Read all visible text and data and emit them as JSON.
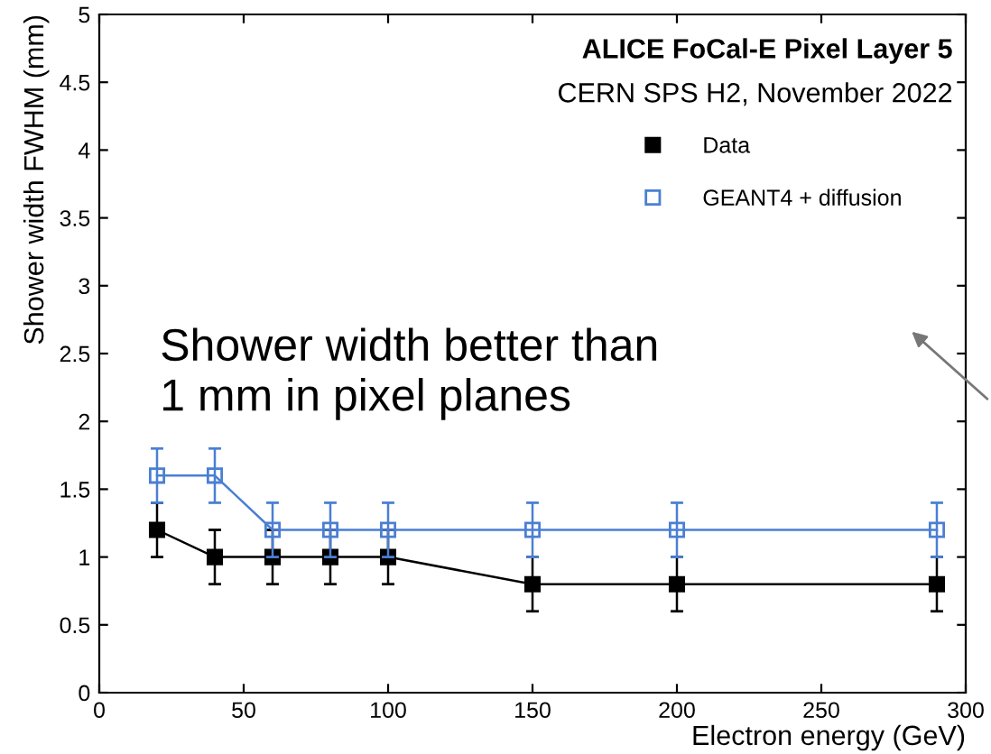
{
  "chart_data": {
    "type": "line",
    "title": "ALICE FoCal-E Pixel Layer 5",
    "subtitle": "CERN SPS H2, November 2022",
    "xlabel": "Electron energy (GeV)",
    "ylabel": "Shower width FWHM (mm)",
    "x": [
      20,
      40,
      60,
      80,
      100,
      150,
      200,
      290
    ],
    "series": [
      {
        "name": "Data",
        "color": "#000000",
        "marker": "square",
        "values": [
          1.2,
          1.0,
          1.0,
          1.0,
          1.0,
          0.8,
          0.8,
          0.8
        ],
        "errors": [
          0.2,
          0.2,
          0.2,
          0.2,
          0.2,
          0.2,
          0.2,
          0.2
        ]
      },
      {
        "name": "GEANT4 + diffusion",
        "color": "#4a7fd4",
        "marker": "square",
        "values": [
          1.6,
          1.6,
          1.2,
          1.2,
          1.2,
          1.2,
          1.2,
          1.2
        ],
        "errors": [
          0.2,
          0.2,
          0.2,
          0.2,
          0.2,
          0.2,
          0.2,
          0.2
        ]
      }
    ],
    "xlim": [
      0,
      300
    ],
    "xticks": [
      0,
      50,
      100,
      150,
      200,
      250,
      300
    ],
    "ylim": [
      0,
      5
    ],
    "yticks": [
      0,
      0.5,
      1,
      1.5,
      2,
      2.5,
      3,
      3.5,
      4,
      4.5,
      5
    ],
    "legend": "top right",
    "grid": false,
    "line_style": "solid",
    "annotations": [
      "Shower width better than\n1 mm in pixel planes"
    ]
  }
}
